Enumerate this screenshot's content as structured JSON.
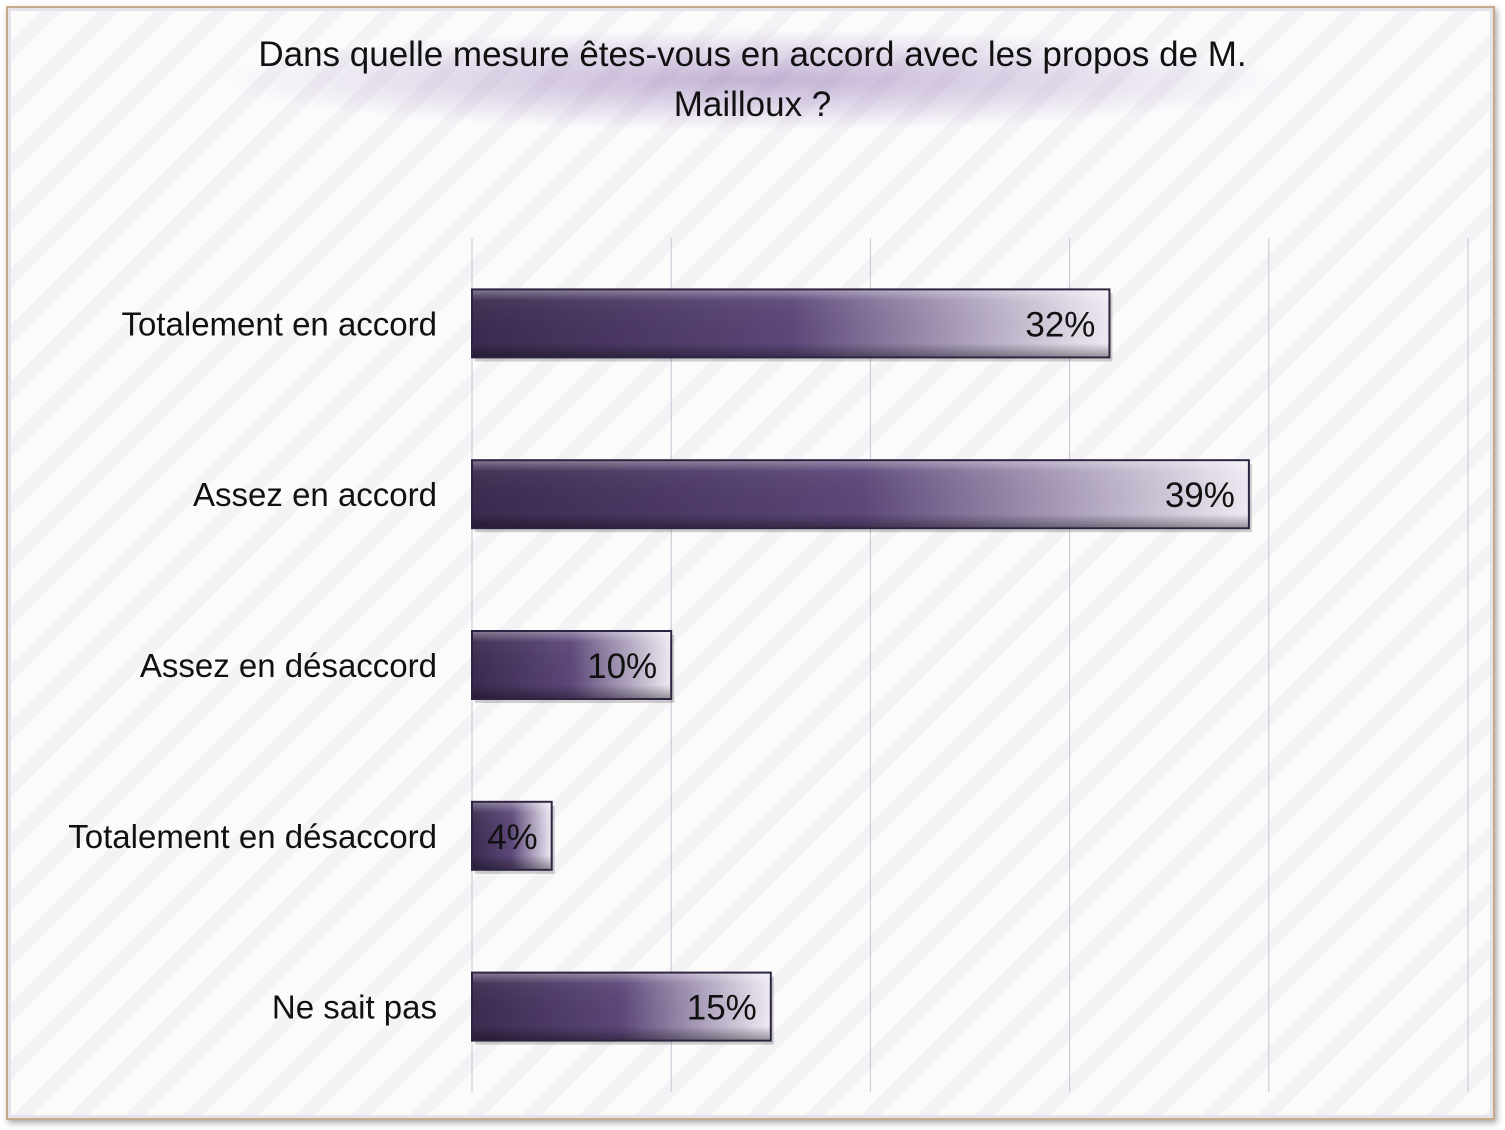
{
  "chart_data": {
    "type": "bar",
    "orientation": "horizontal",
    "title": "Dans quelle mesure êtes-vous en accord avec les propos de M. Mailloux ?",
    "categories": [
      "Totalement en accord",
      "Assez en accord",
      "Assez en désaccord",
      "Totalement en désaccord",
      "Ne sait pas"
    ],
    "values": [
      32,
      39,
      10,
      4,
      15
    ],
    "data_labels": [
      "32%",
      "39%",
      "10%",
      "4%",
      "15%"
    ],
    "xlim": [
      0,
      50
    ],
    "grid": true,
    "legend": "none",
    "colors": {
      "bar_dark": "#3a2a4f",
      "bar_mid": "#5c4779",
      "bar_light": "#efeaf3",
      "grid": "#c9c3d3"
    }
  }
}
